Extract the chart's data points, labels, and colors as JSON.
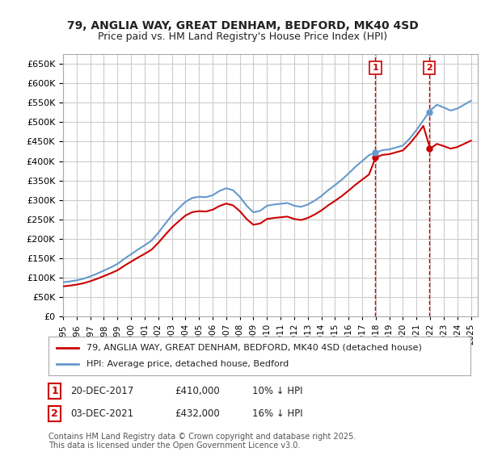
{
  "title": "79, ANGLIA WAY, GREAT DENHAM, BEDFORD, MK40 4SD",
  "subtitle": "Price paid vs. HM Land Registry's House Price Index (HPI)",
  "ylabel": "",
  "xlabel": "",
  "ylim": [
    0,
    675000
  ],
  "yticks": [
    0,
    50000,
    100000,
    150000,
    200000,
    250000,
    300000,
    350000,
    400000,
    450000,
    500000,
    550000,
    600000,
    650000
  ],
  "xlim_start": 1995.0,
  "xlim_end": 2025.5,
  "background_color": "#ffffff",
  "grid_color": "#cccccc",
  "hpi_color": "#6699cc",
  "price_color": "#cc0000",
  "purchase1_date": 2017.97,
  "purchase1_price": 410000,
  "purchase1_label": "1",
  "purchase2_date": 2021.92,
  "purchase2_price": 432000,
  "purchase2_label": "2",
  "legend_price_label": "79, ANGLIA WAY, GREAT DENHAM, BEDFORD, MK40 4SD (detached house)",
  "legend_hpi_label": "HPI: Average price, detached house, Bedford",
  "annotation1": "1   20-DEC-2017      £410,000      10% ↓ HPI",
  "annotation2": "2   03-DEC-2021      £432,000      16% ↓ HPI",
  "footer": "Contains HM Land Registry data © Crown copyright and database right 2025.\nThis data is licensed under the Open Government Licence v3.0.",
  "title_fontsize": 10,
  "subtitle_fontsize": 9,
  "tick_fontsize": 8,
  "legend_fontsize": 8,
  "annotation_fontsize": 8.5,
  "footer_fontsize": 7
}
